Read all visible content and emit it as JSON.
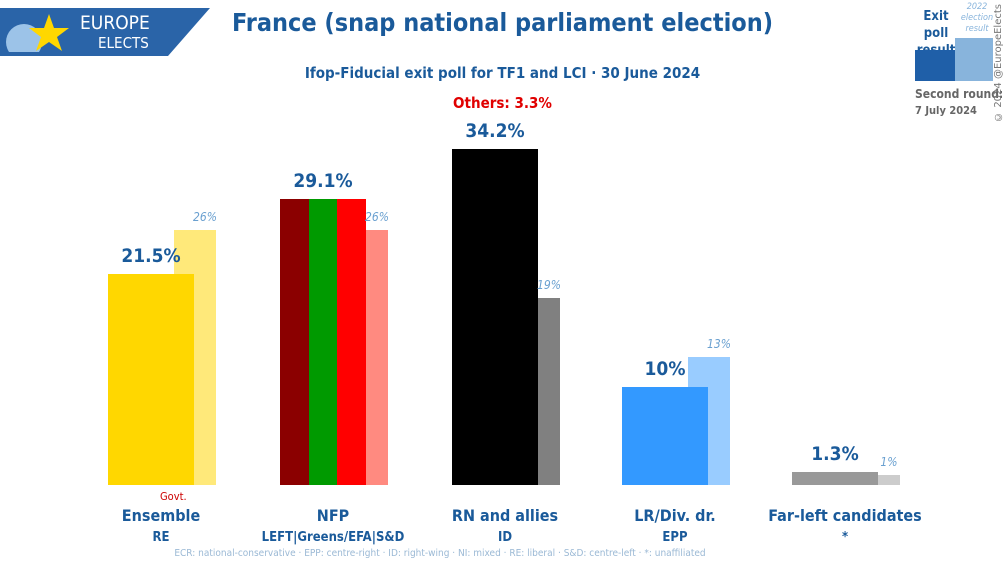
{
  "header": {
    "logo_line1": "EUROPE",
    "logo_line2": "ELECTS",
    "title": "France (snap national parliament election)",
    "subtitle": "Ifop-Fiducial exit poll for TF1 and LCI · 30 June 2024",
    "others": "Others: 3.3%"
  },
  "legend": {
    "current": "Exit poll result",
    "previous": "2022 election result",
    "current_color": "#1f5fa8",
    "previous_color": "#88b4dc",
    "second_round_label": "Second round:",
    "second_round_date": "7 July 2024",
    "copyright": "© 2024 @EuropeElects"
  },
  "footnote": "ECR: national-conservative · EPP: centre-right · ID: right-wing · NI: mixed · RE: liberal · S&D: centre-left · *: unaffiliated",
  "govt_label": "Govt.",
  "chart_data": {
    "type": "bar",
    "ylim": [
      0,
      34.2
    ],
    "categories": [
      "Ensemble",
      "NFP",
      "RN and allies",
      "LR/Div. dr.",
      "Far-left candidates"
    ],
    "groups": [
      "RE",
      "LEFT|Greens/EFA|S&D",
      "ID",
      "EPP",
      "*"
    ],
    "series": [
      {
        "name": "Exit poll result",
        "values": [
          21.5,
          29.1,
          34.2,
          10,
          1.3
        ],
        "labels": [
          "21.5%",
          "29.1%",
          "34.2%",
          "10%",
          "1.3%"
        ]
      },
      {
        "name": "2022 election result",
        "values": [
          26,
          26,
          19,
          13,
          1
        ],
        "labels": [
          "26%",
          "26%",
          "19%",
          "13%",
          "1%"
        ]
      }
    ],
    "colors": [
      [
        "#ffd700"
      ],
      [
        "#8b0000",
        "#009a00",
        "#ff0000"
      ],
      [
        "#000000"
      ],
      [
        "#3399ff"
      ],
      [
        "#999999"
      ]
    ],
    "prev_colors": [
      "#ffe97a",
      "#ff8a80",
      "#808080",
      "#99ccff",
      "#cccccc"
    ]
  }
}
